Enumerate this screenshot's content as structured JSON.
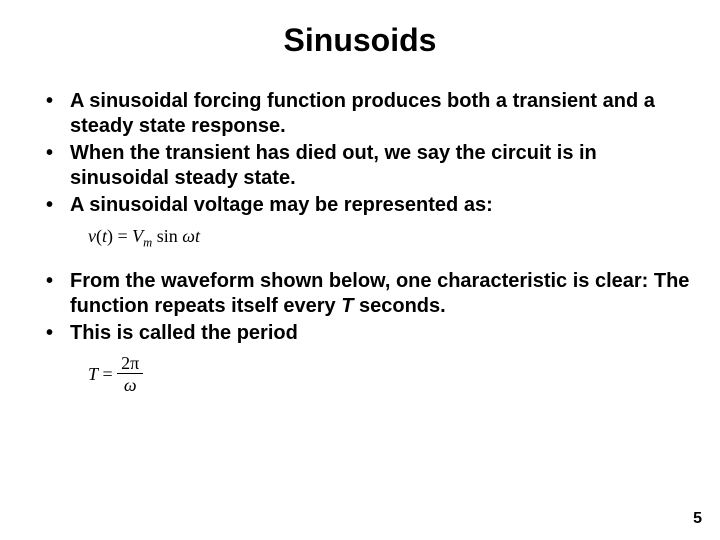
{
  "title": "Sinusoids",
  "bullets_a": [
    "A sinusoidal forcing function produces both a transient and a steady state response.",
    "When the transient has died out, we say the circuit is in sinusoidal steady state.",
    "A sinusoidal voltage may be represented as:"
  ],
  "equation1": {
    "lhs_func": "v",
    "lhs_arg": "t",
    "amp": "V",
    "amp_sub": "m",
    "trig": "sin",
    "omega": "ω",
    "tvar": "t"
  },
  "bullets_b": [
    "From the waveform shown below, one characteristic is clear: The function repeats itself every T seconds.",
    "This is called the period"
  ],
  "period_var_pre": "From the waveform shown below, one characteristic is clear: The function repeats itself every ",
  "period_var": "T",
  "period_var_post": " seconds.",
  "equation2": {
    "lhs": "T",
    "num": "2π",
    "den": "ω"
  },
  "page_number": "5"
}
